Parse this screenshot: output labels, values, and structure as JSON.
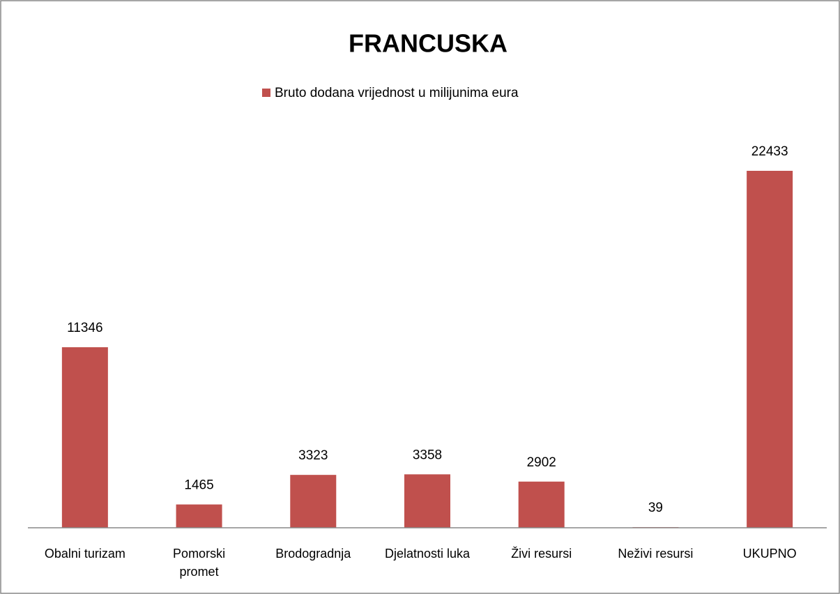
{
  "chart_data": {
    "type": "bar",
    "title": "FRANCUSKA",
    "categories": [
      "Obalni turizam",
      "Pomorski promet",
      "Brodogradnja",
      "Djelatnosti luka",
      "Živi resursi",
      "Neživi resursi",
      "UKUPNO"
    ],
    "series": [
      {
        "name": "Bruto dodana vrijednost u  milijunima eura",
        "color": "#c0504d",
        "values": [
          11346,
          1465,
          3323,
          3358,
          2902,
          39,
          22433
        ]
      }
    ]
  }
}
